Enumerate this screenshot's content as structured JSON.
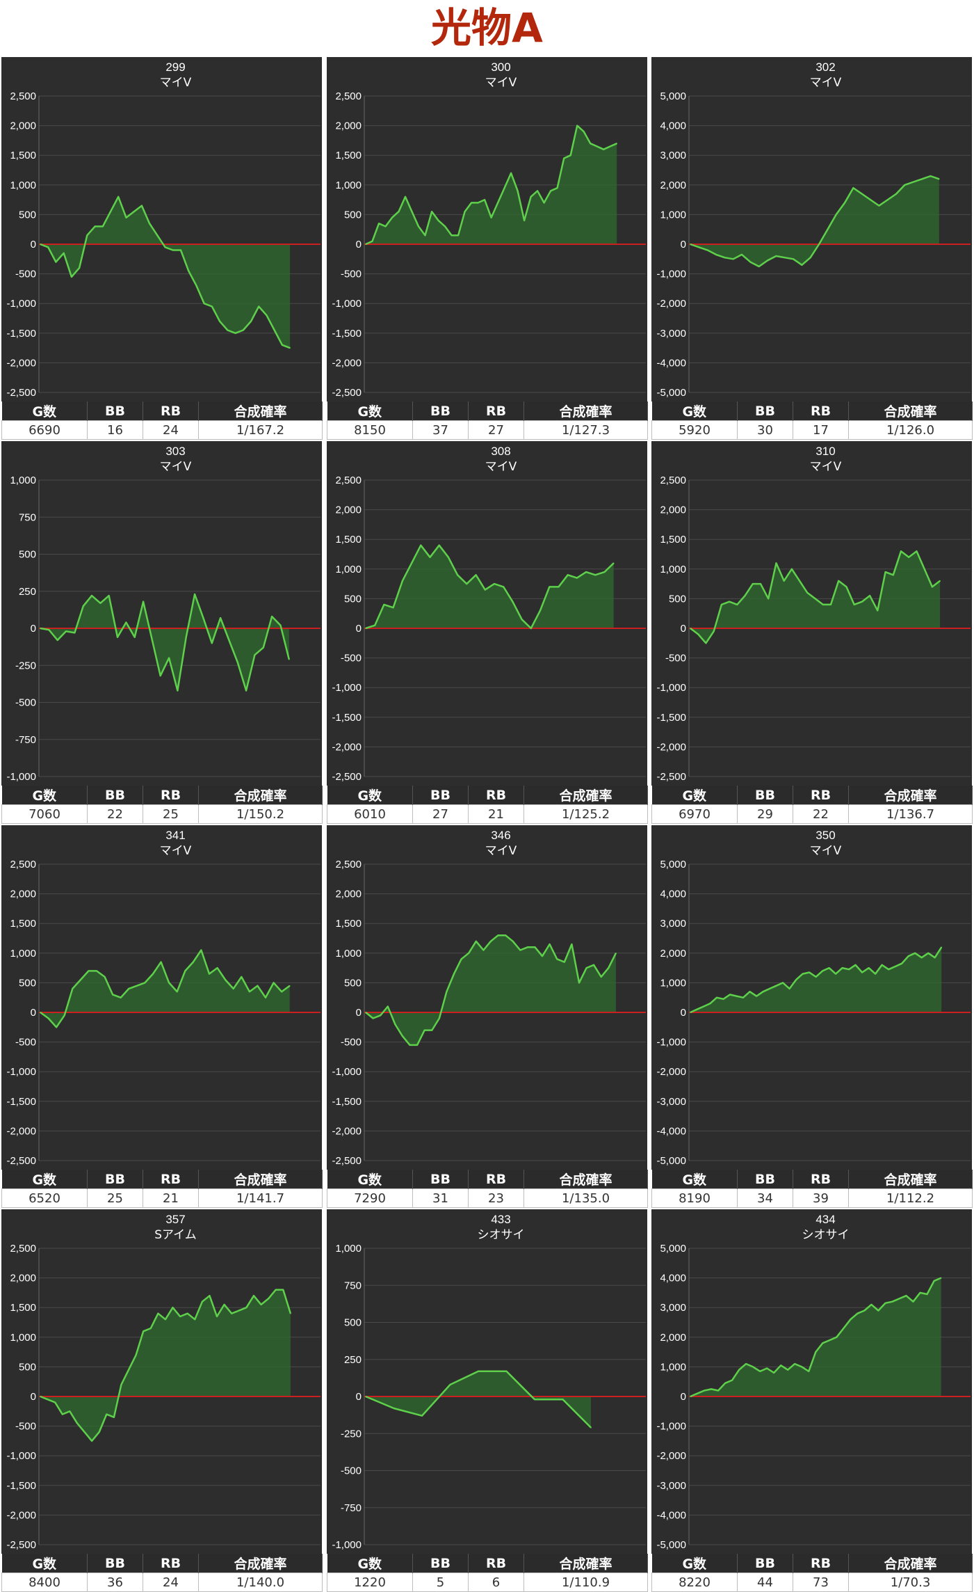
{
  "page": {
    "title": "光物A"
  },
  "table_headers": {
    "games": "G数",
    "bb": "BB",
    "rb": "RB",
    "prob": "合成確率"
  },
  "colors": {
    "background": "#2d2d2d",
    "line": "#5fd04c",
    "fill": "#2f6b2f",
    "zero_line": "#cc1f1f",
    "title": "#b3280c"
  },
  "chart_data": [
    {
      "type": "area",
      "machine": "299",
      "model": "マイV",
      "ylim": [
        -2500,
        2500
      ],
      "y_ticks": [
        "2,500",
        "2,000",
        "1,500",
        "1,000",
        "500",
        "0",
        "-500",
        "-1,000",
        "-1,500",
        "-2,000",
        "-2,500"
      ],
      "values": [
        0,
        -50,
        -300,
        -150,
        -550,
        -400,
        150,
        300,
        300,
        550,
        800,
        450,
        550,
        650,
        350,
        150,
        -50,
        -100,
        -100,
        -450,
        -700,
        -1000,
        -1050,
        -1300,
        -1450,
        -1500,
        -1450,
        -1300,
        -1050,
        -1200,
        -1450,
        -1700,
        -1750
      ],
      "stats": {
        "games": "6690",
        "bb": "16",
        "rb": "24",
        "prob": "1/167.2"
      }
    },
    {
      "type": "area",
      "machine": "300",
      "model": "マイV",
      "ylim": [
        -2500,
        2500
      ],
      "y_ticks": [
        "2,500",
        "2,000",
        "1,500",
        "1,000",
        "500",
        "0",
        "-500",
        "-1,000",
        "-1,500",
        "-2,000",
        "-2,500"
      ],
      "values": [
        0,
        50,
        350,
        300,
        450,
        550,
        800,
        550,
        300,
        150,
        550,
        400,
        300,
        150,
        150,
        550,
        700,
        700,
        750,
        450,
        700,
        950,
        1200,
        900,
        400,
        800,
        900,
        700,
        900,
        950,
        1450,
        1500,
        2000,
        1900,
        1700,
        1650,
        1600,
        1650,
        1700
      ],
      "stats": {
        "games": "8150",
        "bb": "37",
        "rb": "27",
        "prob": "1/127.3"
      }
    },
    {
      "type": "area",
      "machine": "302",
      "model": "マイV",
      "ylim": [
        -5000,
        5000
      ],
      "y_ticks": [
        "5,000",
        "4,000",
        "3,000",
        "2,000",
        "1,000",
        "0",
        "-1,000",
        "-2,000",
        "-3,000",
        "-4,000",
        "-5,000"
      ],
      "values": [
        0,
        -100,
        -200,
        -350,
        -450,
        -500,
        -350,
        -600,
        -750,
        -550,
        -400,
        -450,
        -500,
        -700,
        -450,
        0,
        500,
        1000,
        1400,
        1900,
        1700,
        1500,
        1300,
        1500,
        1700,
        2000,
        2100,
        2200,
        2300,
        2200
      ],
      "stats": {
        "games": "5920",
        "bb": "30",
        "rb": "17",
        "prob": "1/126.0"
      }
    },
    {
      "type": "area",
      "machine": "303",
      "model": "マイV",
      "ylim": [
        -1000,
        1000
      ],
      "y_ticks": [
        "1,000",
        "750",
        "500",
        "250",
        "0",
        "-250",
        "-500",
        "-750",
        "-1,000"
      ],
      "values": [
        0,
        -10,
        -80,
        -20,
        -30,
        150,
        220,
        170,
        220,
        -60,
        40,
        -60,
        180,
        -70,
        -320,
        -200,
        -420,
        -60,
        230,
        70,
        -100,
        70,
        -80,
        -230,
        -420,
        -180,
        -130,
        80,
        20,
        -210
      ],
      "stats": {
        "games": "7060",
        "bb": "22",
        "rb": "25",
        "prob": "1/150.2"
      }
    },
    {
      "type": "area",
      "machine": "308",
      "model": "マイV",
      "ylim": [
        -2500,
        2500
      ],
      "y_ticks": [
        "2,500",
        "2,000",
        "1,500",
        "1,000",
        "500",
        "0",
        "-500",
        "-1,000",
        "-1,500",
        "-2,000",
        "-2,500"
      ],
      "values": [
        0,
        50,
        400,
        350,
        800,
        1100,
        1400,
        1200,
        1400,
        1200,
        900,
        750,
        900,
        650,
        750,
        700,
        450,
        150,
        0,
        300,
        700,
        700,
        900,
        850,
        950,
        900,
        950,
        1100
      ],
      "stats": {
        "games": "6010",
        "bb": "27",
        "rb": "21",
        "prob": "1/125.2"
      }
    },
    {
      "type": "area",
      "machine": "310",
      "model": "マイV",
      "ylim": [
        -2500,
        2500
      ],
      "y_ticks": [
        "2,500",
        "2,000",
        "1,500",
        "1,000",
        "500",
        "0",
        "-500",
        "-1,000",
        "-1,500",
        "-2,000",
        "-2,500"
      ],
      "values": [
        0,
        -100,
        -250,
        -50,
        400,
        450,
        400,
        550,
        750,
        750,
        500,
        1100,
        800,
        1000,
        800,
        600,
        500,
        400,
        400,
        800,
        700,
        400,
        450,
        550,
        300,
        950,
        900,
        1300,
        1200,
        1300,
        1000,
        700,
        800
      ],
      "stats": {
        "games": "6970",
        "bb": "29",
        "rb": "22",
        "prob": "1/136.7"
      }
    },
    {
      "type": "area",
      "machine": "341",
      "model": "マイV",
      "ylim": [
        -2500,
        2500
      ],
      "y_ticks": [
        "2,500",
        "2,000",
        "1,500",
        "1,000",
        "500",
        "0",
        "-500",
        "-1,000",
        "-1,500",
        "-2,000",
        "-2,500"
      ],
      "values": [
        0,
        -100,
        -250,
        -50,
        400,
        550,
        700,
        700,
        600,
        300,
        250,
        400,
        450,
        500,
        650,
        850,
        500,
        350,
        700,
        850,
        1050,
        650,
        750,
        550,
        400,
        600,
        350,
        450,
        250,
        500,
        350,
        450
      ],
      "stats": {
        "games": "6520",
        "bb": "25",
        "rb": "21",
        "prob": "1/141.7"
      }
    },
    {
      "type": "area",
      "machine": "346",
      "model": "マイV",
      "ylim": [
        -2500,
        2500
      ],
      "y_ticks": [
        "2,500",
        "2,000",
        "1,500",
        "1,000",
        "500",
        "0",
        "-500",
        "-1,000",
        "-1,500",
        "-2,000",
        "-2,500"
      ],
      "values": [
        0,
        -100,
        -50,
        100,
        -200,
        -400,
        -550,
        -550,
        -300,
        -300,
        -100,
        350,
        650,
        900,
        1000,
        1200,
        1050,
        1200,
        1300,
        1300,
        1200,
        1050,
        1100,
        1100,
        950,
        1150,
        900,
        850,
        1150,
        500,
        750,
        800,
        600,
        750,
        1000
      ],
      "stats": {
        "games": "7290",
        "bb": "31",
        "rb": "23",
        "prob": "1/135.0"
      }
    },
    {
      "type": "area",
      "machine": "350",
      "model": "マイV",
      "ylim": [
        -5000,
        5000
      ],
      "y_ticks": [
        "5,000",
        "4,000",
        "3,000",
        "2,000",
        "1,000",
        "0",
        "-1,000",
        "-2,000",
        "-3,000",
        "-4,000",
        "-5,000"
      ],
      "values": [
        0,
        100,
        200,
        300,
        500,
        450,
        600,
        550,
        500,
        700,
        550,
        700,
        800,
        900,
        1000,
        800,
        1100,
        1300,
        1350,
        1200,
        1400,
        1500,
        1300,
        1500,
        1450,
        1600,
        1350,
        1500,
        1300,
        1600,
        1450,
        1550,
        1650,
        1900,
        2000,
        1850,
        2000,
        1850,
        2200
      ],
      "stats": {
        "games": "8190",
        "bb": "34",
        "rb": "39",
        "prob": "1/112.2"
      }
    },
    {
      "type": "area",
      "machine": "357",
      "model": "Sアイム",
      "ylim": [
        -2500,
        2500
      ],
      "y_ticks": [
        "2,500",
        "2,000",
        "1,500",
        "1,000",
        "500",
        "0",
        "-500",
        "-1,000",
        "-1,500",
        "-2,000",
        "-2,500"
      ],
      "values": [
        0,
        -50,
        -100,
        -300,
        -250,
        -450,
        -600,
        -750,
        -600,
        -300,
        -350,
        200,
        450,
        700,
        1100,
        1150,
        1400,
        1300,
        1500,
        1350,
        1400,
        1300,
        1600,
        1700,
        1350,
        1550,
        1400,
        1450,
        1500,
        1700,
        1550,
        1650,
        1800,
        1800,
        1400
      ],
      "stats": {
        "games": "8400",
        "bb": "36",
        "rb": "24",
        "prob": "1/140.0"
      }
    },
    {
      "type": "area",
      "machine": "433",
      "model": "シオサイ",
      "ylim": [
        -1000,
        1000
      ],
      "y_ticks": [
        "1,000",
        "750",
        "500",
        "250",
        "0",
        "-250",
        "-500",
        "-750",
        "-1,000"
      ],
      "values": [
        0,
        -80,
        -130,
        80,
        170,
        170,
        -20,
        -20,
        -210
      ],
      "stats": {
        "games": "1220",
        "bb": "5",
        "rb": "6",
        "prob": "1/110.9"
      }
    },
    {
      "type": "area",
      "machine": "434",
      "model": "シオサイ",
      "ylim": [
        -5000,
        5000
      ],
      "y_ticks": [
        "5,000",
        "4,000",
        "3,000",
        "2,000",
        "1,000",
        "0",
        "-1,000",
        "-2,000",
        "-3,000",
        "-4,000",
        "-5,000"
      ],
      "values": [
        0,
        100,
        200,
        250,
        200,
        450,
        550,
        900,
        1100,
        1000,
        850,
        950,
        800,
        1050,
        900,
        1100,
        1000,
        850,
        1500,
        1800,
        1900,
        2000,
        2300,
        2600,
        2800,
        2900,
        3100,
        2900,
        3150,
        3200,
        3300,
        3400,
        3200,
        3500,
        3450,
        3900,
        4000
      ],
      "stats": {
        "games": "8220",
        "bb": "44",
        "rb": "73",
        "prob": "1/70.3"
      }
    }
  ]
}
